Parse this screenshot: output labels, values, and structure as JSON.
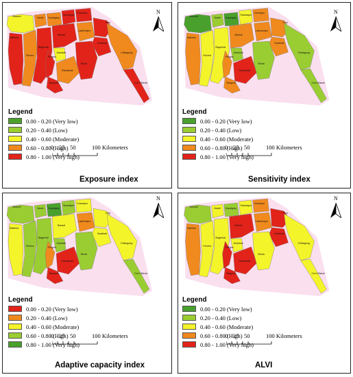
{
  "panels": [
    {
      "caption": "Exposure index",
      "legend_title": "Legend",
      "legend": [
        {
          "label": "0.00 - 0.20 (Very low)",
          "color": "#4aa02c"
        },
        {
          "label": "0.20 - 0.40 (Low)",
          "color": "#9acd32"
        },
        {
          "label": "0.40 - 0.60 (Moderate)",
          "color": "#f4f42a"
        },
        {
          "label": "0.60 - 0.80 (High)",
          "color": "#f08a1e"
        },
        {
          "label": "0.80 - 1.00 (Very high)",
          "color": "#e2231a"
        }
      ],
      "district_levels": [
        2,
        3,
        3,
        4,
        4,
        4,
        3,
        4,
        4,
        3,
        4,
        4,
        2,
        4,
        3,
        4,
        4,
        3,
        4
      ]
    },
    {
      "caption": "Sensitivity index",
      "legend_title": "Legend",
      "legend": [
        {
          "label": "0.00 - 0.20 (Very low)",
          "color": "#4aa02c"
        },
        {
          "label": "0.20 - 0.40 (Low)",
          "color": "#9acd32"
        },
        {
          "label": "0.40 - 0.60 (Moderate)",
          "color": "#f4f42a"
        },
        {
          "label": "0.60 - 0.80 (High)",
          "color": "#f08a1e"
        },
        {
          "label": "0.80 - 1.00 (Very high)",
          "color": "#e2231a"
        }
      ],
      "district_levels": [
        0,
        1,
        0,
        2,
        3,
        3,
        2,
        2,
        3,
        3,
        3,
        3,
        1,
        3,
        4,
        3,
        1,
        1,
        1
      ]
    },
    {
      "caption": "Adaptive capacity index",
      "legend_title": "Legend",
      "legend": [
        {
          "label": "0.00 - 0.20 (Very low)",
          "color": "#e2231a"
        },
        {
          "label": "0.20 - 0.40 (Low)",
          "color": "#f08a1e"
        },
        {
          "label": "0.40 - 0.60 (Moderate)",
          "color": "#f4f42a"
        },
        {
          "label": "0.60 - 0.80 (High)",
          "color": "#9acd32"
        },
        {
          "label": "0.80 - 1.00 (Very high)",
          "color": "#4aa02c"
        }
      ],
      "district_levels": [
        3,
        3,
        4,
        3,
        2,
        2,
        3,
        3,
        2,
        1,
        2,
        2,
        3,
        1,
        0,
        0,
        3,
        2,
        3
      ]
    },
    {
      "caption": "ALVI",
      "legend_title": "Legend",
      "legend": [
        {
          "label": "0.00 - 0.20 (Very low)",
          "color": "#4aa02c"
        },
        {
          "label": "0.20 - 0.40 (Low)",
          "color": "#9acd32"
        },
        {
          "label": "0.40 - 0.60 (Moderate)",
          "color": "#f4f42a"
        },
        {
          "label": "0.60 - 0.80 (High)",
          "color": "#f08a1e"
        },
        {
          "label": "0.80 - 1.00 (Very high)",
          "color": "#e2231a"
        }
      ],
      "district_levels": [
        1,
        2,
        1,
        2,
        3,
        3,
        2,
        2,
        4,
        3,
        4,
        4,
        2,
        4,
        4,
        4,
        2,
        2,
        2
      ]
    }
  ],
  "scale": {
    "ticks": [
      "0",
      "25",
      "50",
      "100 Kilometers"
    ]
  },
  "north_letter": "N",
  "place_names": [
    "Jessore",
    "Narail",
    "Gopalganj",
    "Shariatpur",
    "Chandpur",
    "Satkhira",
    "Khulna",
    "Bagerhat",
    "Barisal",
    "Lakshmipur",
    "Feni",
    "Noakhali",
    "Jhalokati",
    "Pirojpur",
    "Patuakhali",
    "Barguna",
    "Bhola",
    "Chittagong",
    "Cox's Bazar"
  ]
}
